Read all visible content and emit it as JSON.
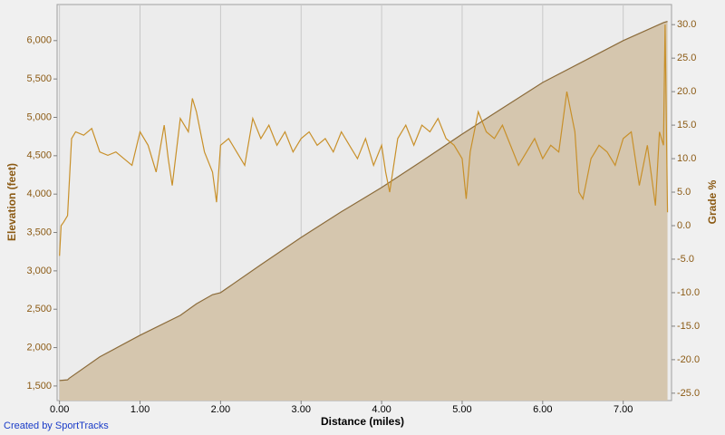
{
  "chart_data": {
    "type": "area-line",
    "xlabel": "Distance (miles)",
    "ylabel": "Elevation (feet)",
    "y2label": "Grade %",
    "credit": "Created by SportTracks",
    "xlim": [
      -0.03,
      7.6
    ],
    "ylim": [
      1310,
      6470
    ],
    "y2lim": [
      -26.1,
      33.0
    ],
    "xticks": [
      {
        "value": 0,
        "label": "0.00"
      },
      {
        "value": 1,
        "label": "1.00"
      },
      {
        "value": 2,
        "label": "2.00"
      },
      {
        "value": 3,
        "label": "3.00"
      },
      {
        "value": 4,
        "label": "4.00"
      },
      {
        "value": 5,
        "label": "5.00"
      },
      {
        "value": 6,
        "label": "6.00"
      },
      {
        "value": 7,
        "label": "7.00"
      }
    ],
    "yticks": [
      {
        "value": 1500,
        "label": "1,500"
      },
      {
        "value": 2000,
        "label": "2,000"
      },
      {
        "value": 2500,
        "label": "2,500"
      },
      {
        "value": 3000,
        "label": "3,000"
      },
      {
        "value": 3500,
        "label": "3,500"
      },
      {
        "value": 4000,
        "label": "4,000"
      },
      {
        "value": 4500,
        "label": "4,500"
      },
      {
        "value": 5000,
        "label": "5,000"
      },
      {
        "value": 5500,
        "label": "5,500"
      },
      {
        "value": 6000,
        "label": "6,000"
      }
    ],
    "y2ticks": [
      {
        "value": -25,
        "label": "-25.0"
      },
      {
        "value": -20,
        "label": "-20.0"
      },
      {
        "value": -15,
        "label": "-15.0"
      },
      {
        "value": -10,
        "label": "-10.0"
      },
      {
        "value": -5,
        "label": "-5.0"
      },
      {
        "value": 0,
        "label": "0.0"
      },
      {
        "value": 5,
        "label": "5.0"
      },
      {
        "value": 10,
        "label": "10.0"
      },
      {
        "value": 15,
        "label": "15.0"
      },
      {
        "value": 20,
        "label": "20.0"
      },
      {
        "value": 25,
        "label": "25.0"
      },
      {
        "value": 30,
        "label": "30.0"
      }
    ],
    "xgrid": true,
    "series": [
      {
        "kind": "area",
        "color": "#8b6b3a",
        "fill": "#d5c6ae",
        "x": [
          0,
          0.1,
          0.12,
          0.5,
          1.0,
          1.5,
          1.7,
          1.9,
          2.0,
          2.5,
          3.0,
          3.5,
          4.0,
          4.5,
          5.0,
          5.5,
          6.0,
          6.5,
          7.0,
          7.5,
          7.55
        ],
        "values": [
          1571,
          1580,
          1600,
          1880,
          2161,
          2420,
          2570,
          2690,
          2716,
          3080,
          3436,
          3770,
          4086,
          4430,
          4782,
          5120,
          5455,
          5727,
          6000,
          6234,
          6250
        ]
      },
      {
        "kind": "line",
        "axis": "y2",
        "color": "#c8902a",
        "x": [
          0,
          0.02,
          0.05,
          0.1,
          0.15,
          0.2,
          0.3,
          0.4,
          0.5,
          0.6,
          0.7,
          0.8,
          0.9,
          1.0,
          1.1,
          1.2,
          1.3,
          1.35,
          1.4,
          1.5,
          1.6,
          1.65,
          1.7,
          1.8,
          1.9,
          1.95,
          2.0,
          2.1,
          2.2,
          2.3,
          2.4,
          2.5,
          2.6,
          2.7,
          2.8,
          2.9,
          3.0,
          3.1,
          3.2,
          3.3,
          3.4,
          3.5,
          3.6,
          3.7,
          3.8,
          3.9,
          4.0,
          4.05,
          4.1,
          4.2,
          4.3,
          4.4,
          4.5,
          4.6,
          4.7,
          4.8,
          4.9,
          5.0,
          5.05,
          5.1,
          5.2,
          5.3,
          5.4,
          5.5,
          5.6,
          5.7,
          5.8,
          5.9,
          6.0,
          6.1,
          6.2,
          6.3,
          6.4,
          6.45,
          6.5,
          6.6,
          6.7,
          6.8,
          6.9,
          7.0,
          7.1,
          7.2,
          7.3,
          7.4,
          7.45,
          7.5,
          7.52,
          7.55
        ],
        "values": [
          -4.5,
          0,
          0.5,
          1.5,
          13,
          14,
          13.5,
          14.5,
          11,
          10.5,
          11,
          10,
          9,
          14,
          12,
          8,
          15,
          10,
          6,
          16,
          14,
          19,
          17,
          11,
          8,
          3.5,
          12,
          13,
          11,
          9,
          16,
          13,
          15,
          12,
          14,
          11,
          13,
          14,
          12,
          13,
          11,
          14,
          12,
          10,
          13,
          9,
          12,
          8,
          5,
          13,
          15,
          12,
          15,
          14,
          16,
          13,
          12,
          10,
          4,
          11,
          17,
          14,
          13,
          15,
          12,
          9,
          11,
          13,
          10,
          12,
          11,
          20,
          14,
          5,
          4,
          10,
          12,
          11,
          9,
          13,
          14,
          6,
          12,
          3,
          14,
          12,
          30,
          2
        ]
      }
    ]
  }
}
